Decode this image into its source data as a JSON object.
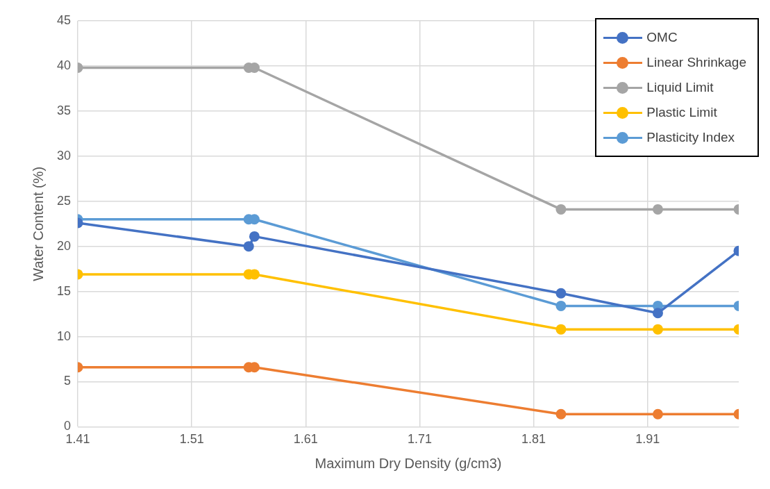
{
  "chart_data": {
    "type": "line",
    "xlabel": "Maximum Dry Density (g/cm3)",
    "ylabel": "Water Content (%)",
    "xlim": [
      1.41,
      1.99
    ],
    "xticks": [
      1.41,
      1.51,
      1.61,
      1.71,
      1.81,
      1.91
    ],
    "ylim": [
      0,
      45
    ],
    "yticks": [
      0,
      5,
      10,
      15,
      20,
      25,
      30,
      35,
      40,
      45
    ],
    "grid": true,
    "legend": "top right",
    "marker": "circle",
    "line_style": "solid",
    "series": [
      {
        "name": "OMC",
        "color": "#4472c4",
        "x": [
          1.41,
          1.56,
          1.565,
          1.834,
          1.919,
          1.99
        ],
        "values": [
          22.6,
          20.0,
          21.1,
          14.8,
          12.6,
          19.5
        ]
      },
      {
        "name": "Linear Shrinkage",
        "color": "#ed7d31",
        "x": [
          1.41,
          1.56,
          1.565,
          1.834,
          1.919,
          1.99
        ],
        "values": [
          6.6,
          6.6,
          6.6,
          1.4,
          1.4,
          1.4
        ]
      },
      {
        "name": "Liquid Limit",
        "color": "#a5a5a5",
        "x": [
          1.41,
          1.56,
          1.565,
          1.834,
          1.919,
          1.99
        ],
        "values": [
          39.8,
          39.8,
          39.8,
          24.1,
          24.1,
          24.1
        ]
      },
      {
        "name": "Plastic Limit",
        "color": "#ffc000",
        "x": [
          1.41,
          1.56,
          1.565,
          1.834,
          1.919,
          1.99
        ],
        "values": [
          16.9,
          16.9,
          16.9,
          10.8,
          10.8,
          10.8
        ]
      },
      {
        "name": "Plasticity Index",
        "color": "#5b9bd5",
        "x": [
          1.41,
          1.56,
          1.565,
          1.834,
          1.919,
          1.99
        ],
        "values": [
          23.0,
          23.0,
          23.0,
          13.4,
          13.4,
          13.4
        ]
      }
    ]
  }
}
